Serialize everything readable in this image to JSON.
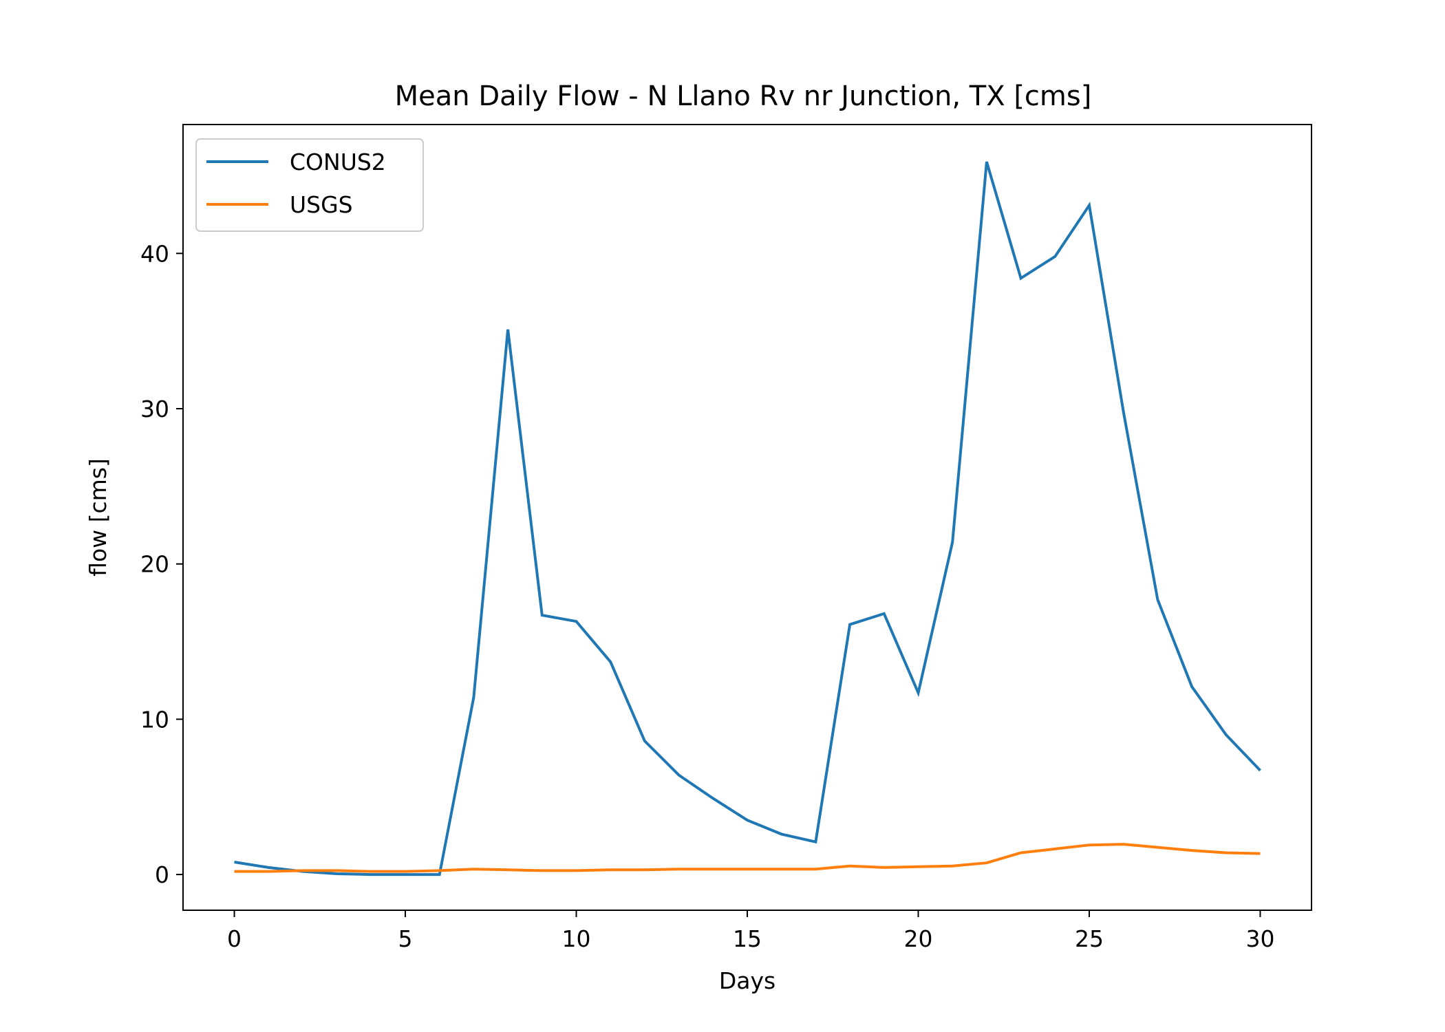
{
  "chart_data": {
    "type": "line",
    "title": "Mean Daily Flow - N Llano Rv nr Junction, TX [cms]",
    "xlabel": "Days",
    "ylabel": "flow [cms]",
    "xlim": [
      -1.5,
      31.5
    ],
    "ylim": [
      -2.3,
      48.3
    ],
    "xticks": [
      0,
      5,
      10,
      15,
      20,
      25,
      30
    ],
    "yticks": [
      0,
      10,
      20,
      30,
      40
    ],
    "grid": false,
    "legend_position": "top-left",
    "x": [
      0,
      1,
      2,
      3,
      4,
      5,
      6,
      7,
      8,
      9,
      10,
      11,
      12,
      13,
      14,
      15,
      16,
      17,
      18,
      19,
      20,
      21,
      22,
      23,
      24,
      25,
      26,
      27,
      28,
      29,
      30
    ],
    "series": [
      {
        "name": "CONUS2",
        "color": "#1f77b4",
        "values": [
          0.8,
          0.45,
          0.2,
          0.05,
          0.0,
          0.0,
          0.0,
          11.4,
          35.1,
          16.7,
          16.3,
          13.7,
          8.6,
          6.4,
          4.9,
          3.5,
          2.6,
          2.1,
          16.1,
          16.8,
          11.7,
          21.4,
          45.9,
          38.4,
          39.8,
          43.1,
          29.8,
          17.7,
          12.1,
          9.0,
          6.7
        ]
      },
      {
        "name": "USGS",
        "color": "#ff7f0e",
        "values": [
          0.2,
          0.2,
          0.25,
          0.25,
          0.2,
          0.2,
          0.25,
          0.35,
          0.3,
          0.25,
          0.25,
          0.3,
          0.3,
          0.35,
          0.35,
          0.35,
          0.35,
          0.35,
          0.55,
          0.45,
          0.5,
          0.55,
          0.75,
          1.4,
          1.65,
          1.9,
          1.95,
          1.75,
          1.55,
          1.4,
          1.35
        ]
      }
    ]
  }
}
